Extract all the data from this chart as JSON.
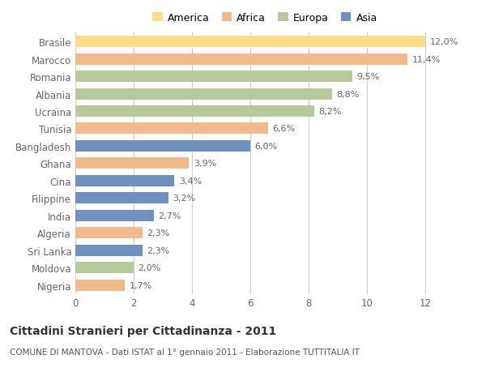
{
  "countries": [
    "Nigeria",
    "Moldova",
    "Sri Lanka",
    "Algeria",
    "India",
    "Filippine",
    "Cina",
    "Ghana",
    "Bangladesh",
    "Tunisia",
    "Ucraina",
    "Albania",
    "Romania",
    "Marocco",
    "Brasile"
  ],
  "values": [
    1.7,
    2.0,
    2.3,
    2.3,
    2.7,
    3.2,
    3.4,
    3.9,
    6.0,
    6.6,
    8.2,
    8.8,
    9.5,
    11.4,
    12.0
  ],
  "continents": [
    "Africa",
    "Europa",
    "Asia",
    "Africa",
    "Asia",
    "Asia",
    "Asia",
    "Africa",
    "Asia",
    "Africa",
    "Europa",
    "Europa",
    "Europa",
    "Africa",
    "America"
  ],
  "labels": [
    "1,7%",
    "2,0%",
    "2,3%",
    "2,3%",
    "2,7%",
    "3,2%",
    "3,4%",
    "3,9%",
    "6,0%",
    "6,6%",
    "8,2%",
    "8,8%",
    "9,5%",
    "11,4%",
    "12,0%"
  ],
  "colors": {
    "America": "#FFDD88",
    "Africa": "#F2B98B",
    "Europa": "#B5C99A",
    "Asia": "#7090C0"
  },
  "legend_order": [
    "America",
    "Africa",
    "Europa",
    "Asia"
  ],
  "title": "Cittadini Stranieri per Cittadinanza - 2011",
  "subtitle": "COMUNE DI MANTOVA - Dati ISTAT al 1° gennaio 2011 - Elaborazione TUTTITALIA.IT",
  "xlim": [
    0,
    13
  ],
  "xticks": [
    0,
    2,
    4,
    6,
    8,
    10,
    12
  ],
  "background_color": "#FFFFFF",
  "grid_color": "#CCCCCC"
}
